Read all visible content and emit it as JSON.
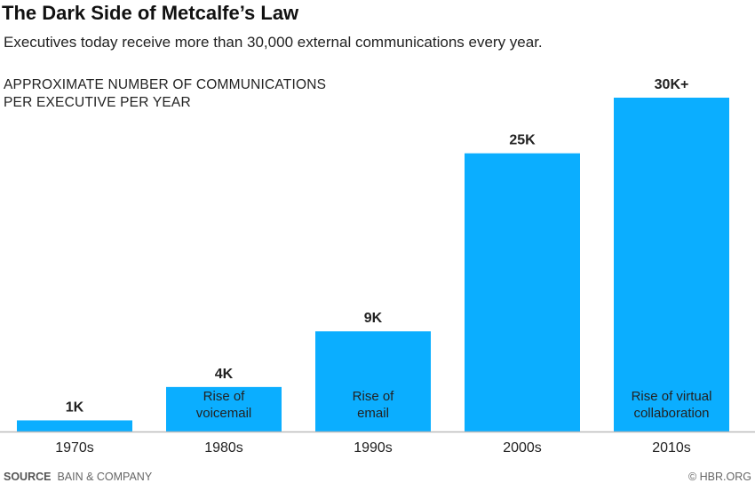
{
  "chart_data": {
    "type": "bar",
    "title": "The Dark Side of Metcalfe’s Law",
    "subtitle": "Executives today receive more than 30,000 external communications every year.",
    "ylabel": [
      "APPROXIMATE NUMBER OF COMMUNICATIONS",
      "PER EXECUTIVE PER YEAR"
    ],
    "xlabel": "",
    "categories": [
      "1970s",
      "1980s",
      "1990s",
      "2000s",
      "2010s"
    ],
    "values": [
      1000,
      4000,
      9000,
      25000,
      30000
    ],
    "data_labels": [
      "1K",
      "4K",
      "9K",
      "25K",
      "30K+"
    ],
    "annotations": [
      [],
      [
        "Rise of",
        "voicemail"
      ],
      [
        "Rise of",
        "email"
      ],
      [],
      [
        "Rise of virtual",
        "collaboration"
      ]
    ],
    "ylim": [
      0,
      30000
    ],
    "grid": false,
    "bar_color": "#0BAEFF",
    "axis_color": "#BBBBBB"
  },
  "footer": {
    "source_label": "SOURCE",
    "source": "BAIN & COMPANY",
    "credit": "© HBR.ORG"
  }
}
